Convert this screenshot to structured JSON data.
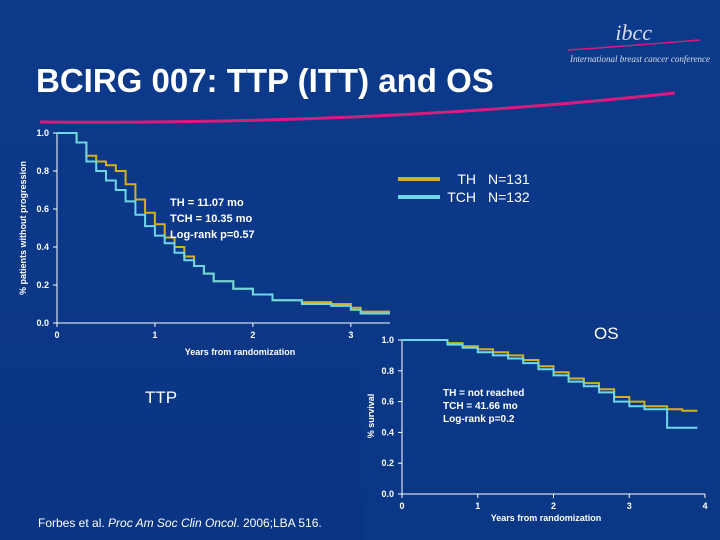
{
  "title": "BCIRG 007: TTP (ITT) and OS",
  "logo": {
    "mark": "ibcc",
    "tagline": "International breast cancer conference"
  },
  "legend": {
    "entries": [
      {
        "name": "TH",
        "n": "N=131",
        "color": "#d4b11a"
      },
      {
        "name": "TCH",
        "n": "N=132",
        "color": "#6fd6e8"
      }
    ]
  },
  "ttp_label": "TTP",
  "os_label": "OS",
  "footer": {
    "prefix": "Forbes et al. ",
    "journal": "Proc Am Soc Clin Oncol",
    "suffix": ". 2006;LBA 516."
  },
  "chart_data": [
    {
      "id": "ttp",
      "type": "line",
      "xlabel": "Years from randomization",
      "ylabel": "% patients without progression",
      "xlim": [
        0,
        3.4
      ],
      "ylim": [
        0,
        1.0
      ],
      "xticks": [
        "0",
        "1",
        "2",
        "3"
      ],
      "yticks": [
        "0.0",
        "0.2",
        "0.4",
        "0.6",
        "0.8",
        "1.0"
      ],
      "annotations": [
        "TH = 11.07 mo",
        "TCH = 10.35 mo",
        "Log-rank p=0.57"
      ],
      "series": [
        {
          "name": "TH",
          "color": "#d4b11a",
          "x": [
            0,
            0.1,
            0.2,
            0.3,
            0.4,
            0.5,
            0.6,
            0.7,
            0.8,
            0.9,
            1.0,
            1.1,
            1.2,
            1.3,
            1.4,
            1.5,
            1.6,
            1.8,
            2.0,
            2.2,
            2.5,
            2.8,
            3.0,
            3.1,
            3.4
          ],
          "y": [
            1.0,
            1.0,
            0.95,
            0.88,
            0.85,
            0.83,
            0.8,
            0.73,
            0.65,
            0.58,
            0.52,
            0.45,
            0.4,
            0.35,
            0.3,
            0.26,
            0.22,
            0.18,
            0.15,
            0.12,
            0.11,
            0.1,
            0.08,
            0.06,
            0.06
          ]
        },
        {
          "name": "TCH",
          "color": "#6fd6e8",
          "x": [
            0,
            0.1,
            0.2,
            0.3,
            0.4,
            0.5,
            0.6,
            0.7,
            0.8,
            0.9,
            1.0,
            1.1,
            1.2,
            1.3,
            1.4,
            1.5,
            1.6,
            1.8,
            2.0,
            2.2,
            2.5,
            2.8,
            3.0,
            3.1,
            3.4
          ],
          "y": [
            1.0,
            1.0,
            0.95,
            0.85,
            0.8,
            0.75,
            0.7,
            0.64,
            0.57,
            0.51,
            0.46,
            0.42,
            0.37,
            0.33,
            0.3,
            0.26,
            0.22,
            0.18,
            0.15,
            0.12,
            0.1,
            0.09,
            0.07,
            0.05,
            0.05
          ]
        }
      ]
    },
    {
      "id": "os",
      "type": "line",
      "xlabel": "Years from randomization",
      "ylabel": "% survival",
      "xlim": [
        0,
        4
      ],
      "ylim": [
        0,
        1.0
      ],
      "xticks": [
        "0",
        "1",
        "2",
        "3",
        "4"
      ],
      "yticks": [
        "0.0",
        "0.2",
        "0.4",
        "0.6",
        "0.8",
        "1.0"
      ],
      "annotations": [
        "TH = not reached",
        "TCH = 41.66 mo",
        "Log-rank p=0.2"
      ],
      "series": [
        {
          "name": "TH",
          "color": "#d4b11a",
          "x": [
            0,
            0.4,
            0.6,
            0.8,
            1.0,
            1.2,
            1.4,
            1.6,
            1.8,
            2.0,
            2.2,
            2.4,
            2.6,
            2.8,
            3.0,
            3.2,
            3.5,
            3.7,
            3.9
          ],
          "y": [
            1.0,
            1.0,
            0.98,
            0.96,
            0.94,
            0.92,
            0.9,
            0.87,
            0.83,
            0.79,
            0.75,
            0.72,
            0.68,
            0.63,
            0.6,
            0.57,
            0.55,
            0.54,
            0.54
          ]
        },
        {
          "name": "TCH",
          "color": "#6fd6e8",
          "x": [
            0,
            0.4,
            0.6,
            0.8,
            1.0,
            1.2,
            1.4,
            1.6,
            1.8,
            2.0,
            2.2,
            2.4,
            2.6,
            2.8,
            3.0,
            3.2,
            3.45,
            3.5,
            3.7,
            3.9
          ],
          "y": [
            1.0,
            1.0,
            0.97,
            0.95,
            0.92,
            0.9,
            0.88,
            0.85,
            0.81,
            0.77,
            0.73,
            0.7,
            0.66,
            0.6,
            0.57,
            0.55,
            0.55,
            0.43,
            0.43,
            0.43
          ]
        }
      ]
    }
  ]
}
